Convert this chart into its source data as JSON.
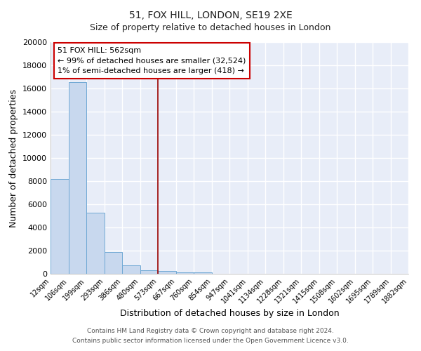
{
  "title1": "51, FOX HILL, LONDON, SE19 2XE",
  "title2": "Size of property relative to detached houses in London",
  "xlabel": "Distribution of detached houses by size in London",
  "ylabel": "Number of detached properties",
  "bar_edges": [
    12,
    106,
    199,
    293,
    386,
    480,
    573,
    667,
    760,
    854,
    947,
    1041,
    1134,
    1228,
    1321,
    1415,
    1508,
    1602,
    1695,
    1789,
    1882
  ],
  "bar_heights": [
    8200,
    16550,
    5300,
    1850,
    700,
    310,
    230,
    130,
    100,
    0,
    0,
    0,
    0,
    0,
    0,
    0,
    0,
    0,
    0,
    0
  ],
  "bar_color": "#c8d8ee",
  "bar_edge_color": "#6fa8d4",
  "property_line_x": 573,
  "property_line_color": "#990000",
  "annotation_title": "51 FOX HILL: 562sqm",
  "annotation_line1": "← 99% of detached houses are smaller (32,524)",
  "annotation_line2": "1% of semi-detached houses are larger (418) →",
  "annotation_box_color": "#ffffff",
  "annotation_box_edge": "#cc0000",
  "ylim": [
    0,
    20000
  ],
  "yticks": [
    0,
    2000,
    4000,
    6000,
    8000,
    10000,
    12000,
    14000,
    16000,
    18000,
    20000
  ],
  "xtick_labels": [
    "12sqm",
    "106sqm",
    "199sqm",
    "293sqm",
    "386sqm",
    "480sqm",
    "573sqm",
    "667sqm",
    "760sqm",
    "854sqm",
    "947sqm",
    "1041sqm",
    "1134sqm",
    "1228sqm",
    "1321sqm",
    "1415sqm",
    "1508sqm",
    "1602sqm",
    "1695sqm",
    "1789sqm",
    "1882sqm"
  ],
  "plot_bg_color": "#e8edf8",
  "fig_bg_color": "#ffffff",
  "grid_color": "#ffffff",
  "footnote1": "Contains HM Land Registry data © Crown copyright and database right 2024.",
  "footnote2": "Contains public sector information licensed under the Open Government Licence v3.0."
}
